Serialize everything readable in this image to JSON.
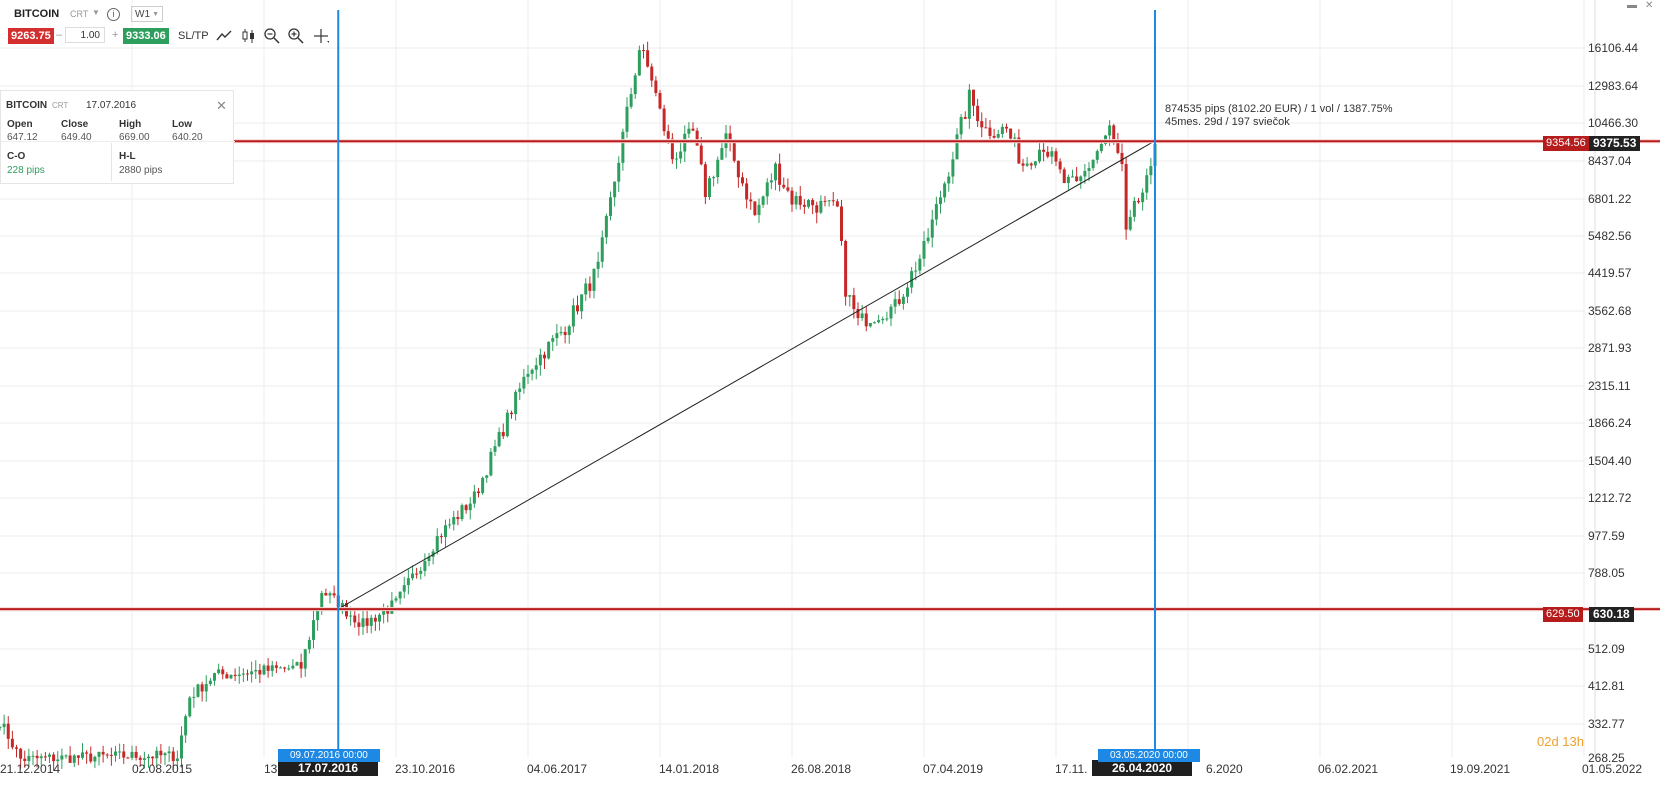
{
  "toolbar": {
    "symbol": "BITCOIN",
    "type": "CRT",
    "timeframe": "W1",
    "bid": "9263.75",
    "lot": "1.00",
    "ask": "9333.06",
    "sltp": "SL/TP",
    "minus": "–",
    "plus": "+"
  },
  "ohlc_panel": {
    "symbol": "BITCOIN",
    "type": "CRT",
    "date": "17.07.2016",
    "open_label": "Open",
    "open": "647.12",
    "close_label": "Close",
    "close": "649.40",
    "high_label": "High",
    "high": "669.00",
    "low_label": "Low",
    "low": "640.20",
    "co_label": "C-O",
    "co": "228 pips",
    "hl_label": "H-L",
    "hl": "2880 pips"
  },
  "measurement": {
    "line1": "874535 pips (8102.20 EUR) / 1 vol / 1387.75%",
    "line2": "45mes. 29d / 197 sviečok"
  },
  "y_axis": {
    "labels": [
      "16106.44",
      "12983.64",
      "10466.30",
      "8437.04",
      "6801.22",
      "5482.56",
      "4419.57",
      "3562.68",
      "2871.93",
      "2315.11",
      "1866.24",
      "1504.40",
      "1212.72",
      "977.59",
      "788.05",
      "512.09",
      "412.81",
      "332.77",
      "268.25"
    ]
  },
  "price_tags": {
    "upper_line": "9354.56",
    "upper_current": "9375.53",
    "lower_line": "629.50",
    "lower_current": "630.18"
  },
  "x_axis": {
    "labels": [
      "21.12.2014",
      "02.08.2015",
      "13",
      "23.10.2016",
      "04.06.2017",
      "14.01.2018",
      "26.08.2018",
      "07.04.2019",
      "17.11.",
      "6.2020",
      "06.02.2021",
      "19.09.2021",
      "01.05.2022"
    ],
    "start_selected": "17.07.2016",
    "start_top": "09.07.2016 00:00",
    "end_selected": "26.04.2020",
    "end_top": "03.05.2020 00:00"
  },
  "countdown": "02d 13h",
  "chart_data": {
    "type": "candlestick",
    "symbol": "BITCOIN",
    "timeframe": "W1",
    "y_scale": "log",
    "ylim": [
      268.25,
      16106.44
    ],
    "start_date": "2014-12-21",
    "x_tick_labels": [
      "21.12.2014",
      "02.08.2015",
      "23.10.2016",
      "04.06.2017",
      "14.01.2018",
      "26.08.2018",
      "07.04.2019",
      "06.02.2021",
      "19.09.2021",
      "01.05.2022"
    ],
    "anchors": [
      {
        "date": "21.12.2014",
        "price": 330
      },
      {
        "date": "25.01.2015",
        "price": 265
      },
      {
        "date": "02.08.2015",
        "price": 270
      },
      {
        "date": "18.10.2015",
        "price": 270
      },
      {
        "date": "08.11.2015",
        "price": 380
      },
      {
        "date": "20.12.2015",
        "price": 430
      },
      {
        "date": "15.05.2016",
        "price": 450
      },
      {
        "date": "19.06.2016",
        "price": 700
      },
      {
        "date": "17.07.2016",
        "price": 649
      },
      {
        "date": "28.08.2016",
        "price": 575
      },
      {
        "date": "23.10.2016",
        "price": 650
      },
      {
        "date": "01.01.2017",
        "price": 950
      },
      {
        "date": "05.03.2017",
        "price": 1200
      },
      {
        "date": "04.06.2017",
        "price": 2500
      },
      {
        "date": "06.08.2017",
        "price": 3200
      },
      {
        "date": "01.10.2017",
        "price": 4500
      },
      {
        "date": "10.12.2017",
        "price": 16000
      },
      {
        "date": "31.12.2017",
        "price": 13500
      },
      {
        "date": "14.01.2018",
        "price": 11000
      },
      {
        "date": "04.02.2018",
        "price": 8500
      },
      {
        "date": "11.03.2018",
        "price": 9800
      },
      {
        "date": "01.04.2018",
        "price": 7000
      },
      {
        "date": "06.05.2018",
        "price": 9500
      },
      {
        "date": "24.06.2018",
        "price": 6100
      },
      {
        "date": "29.07.2018",
        "price": 8000
      },
      {
        "date": "26.08.2018",
        "price": 6700
      },
      {
        "date": "11.11.2018",
        "price": 6300
      },
      {
        "date": "25.11.2018",
        "price": 4000
      },
      {
        "date": "16.12.2018",
        "price": 3300
      },
      {
        "date": "17.02.2019",
        "price": 3600
      },
      {
        "date": "07.04.2019",
        "price": 5000
      },
      {
        "date": "19.05.2019",
        "price": 8000
      },
      {
        "date": "23.06.2019",
        "price": 12000
      },
      {
        "date": "21.07.2019",
        "price": 10000
      },
      {
        "date": "25.08.2019",
        "price": 10000
      },
      {
        "date": "22.09.2019",
        "price": 8200
      },
      {
        "date": "27.10.2019",
        "price": 9200
      },
      {
        "date": "01.12.2019",
        "price": 7400
      },
      {
        "date": "22.12.2019",
        "price": 7200
      },
      {
        "date": "16.02.2020",
        "price": 10000
      },
      {
        "date": "08.03.2020",
        "price": 8000
      },
      {
        "date": "15.03.2020",
        "price": 5400
      },
      {
        "date": "29.03.2020",
        "price": 6300
      },
      {
        "date": "26.04.2020",
        "price": 7700
      },
      {
        "date": "03.05.2020",
        "price": 9350
      }
    ],
    "horizontal_lines": [
      9354.56,
      629.5
    ],
    "vertical_lines": [
      "17.07.2016",
      "03.05.2020"
    ],
    "trendline": [
      {
        "date": "17.07.2016",
        "price": 630
      },
      {
        "date": "03.05.2020",
        "price": 9375
      }
    ]
  },
  "colors": {
    "bull": "#2e9e5e",
    "bear": "#c62828",
    "hline": "#b71c1c",
    "vline": "#1e88e5",
    "grid": "#eeeeee",
    "trend": "#222222"
  }
}
